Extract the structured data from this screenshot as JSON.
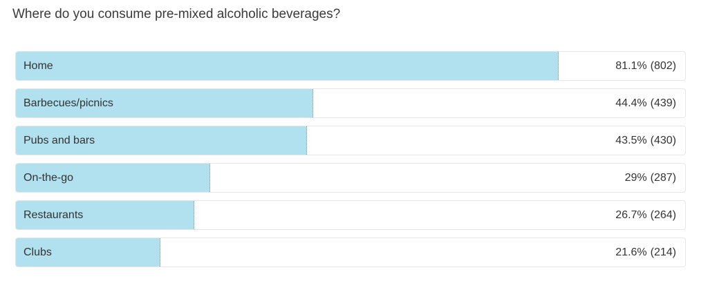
{
  "question": "Where do you consume pre-mixed alcoholic beverages?",
  "accent_color": "#b1e0ef",
  "chart_data": {
    "type": "bar",
    "orientation": "horizontal",
    "title": "Where do you consume pre-mixed alcoholic beverages?",
    "categories": [
      "Home",
      "Barbecues/picnics",
      "Pubs and bars",
      "On-the-go",
      "Restaurants",
      "Clubs"
    ],
    "values": [
      81.1,
      44.4,
      43.5,
      29,
      26.7,
      21.6
    ],
    "counts": [
      802,
      439,
      430,
      287,
      264,
      214
    ],
    "percent_labels": [
      "81.1%",
      "44.4%",
      "43.5%",
      "29%",
      "26.7%",
      "21.6%"
    ],
    "count_labels": [
      "(802)",
      "(439)",
      "(430)",
      "(287)",
      "(264)",
      "(214)"
    ],
    "xlim": [
      0,
      100
    ],
    "unit": "%",
    "grid": false,
    "legend": "none"
  }
}
